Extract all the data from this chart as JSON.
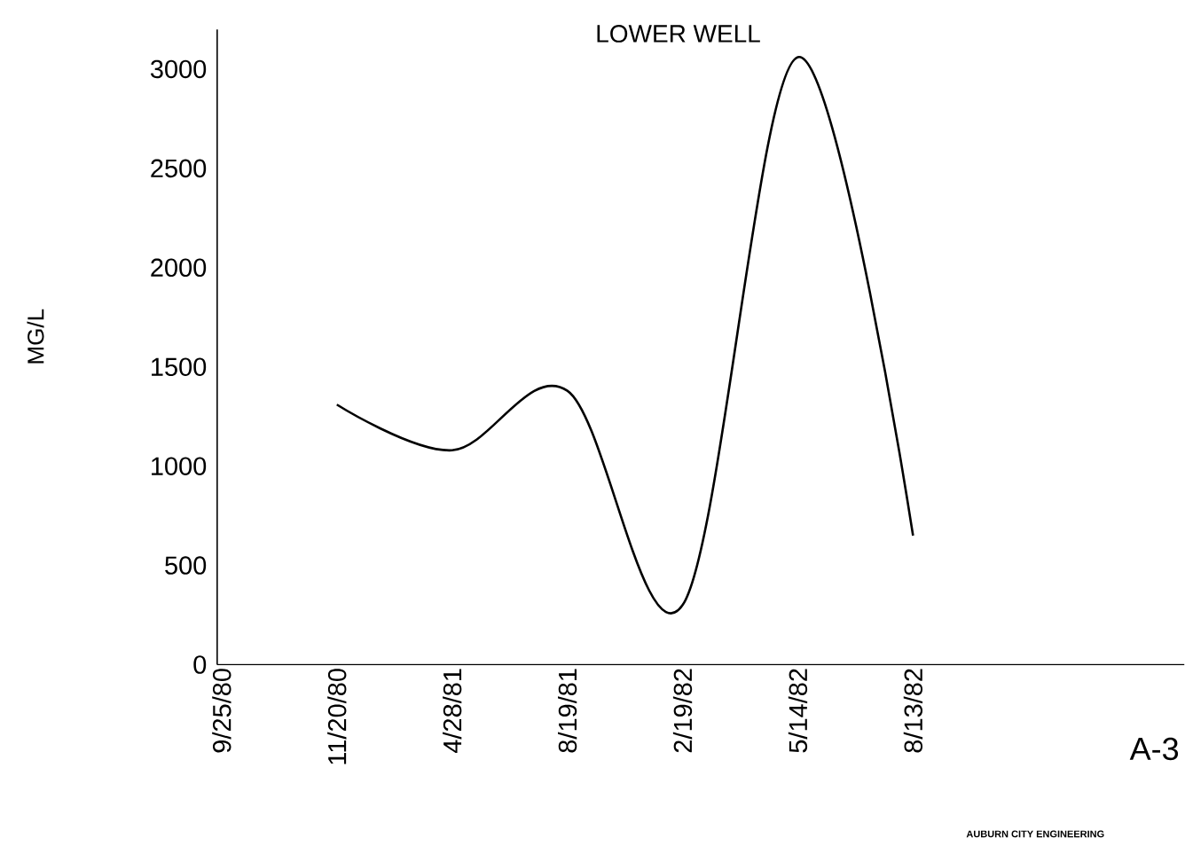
{
  "chart_data": {
    "type": "line",
    "title": "LOWER WELL",
    "ylabel": "MG/L",
    "categories": [
      "9/25/80",
      "11/20/80",
      "4/28/81",
      "8/19/81",
      "2/19/82",
      "5/14/82",
      "8/13/82"
    ],
    "series": [
      {
        "color": "#000000",
        "values": [
          null,
          1310,
          1080,
          1380,
          300,
          3060,
          650
        ]
      }
    ],
    "ylim": [
      0,
      3200
    ],
    "yticks": [
      0,
      500,
      1000,
      1500,
      2000,
      2500,
      3000
    ],
    "grid": false,
    "marker": "none",
    "line_style": "solid",
    "annotations": [
      "A-3",
      "AUBURN CITY ENGINEERING"
    ]
  }
}
